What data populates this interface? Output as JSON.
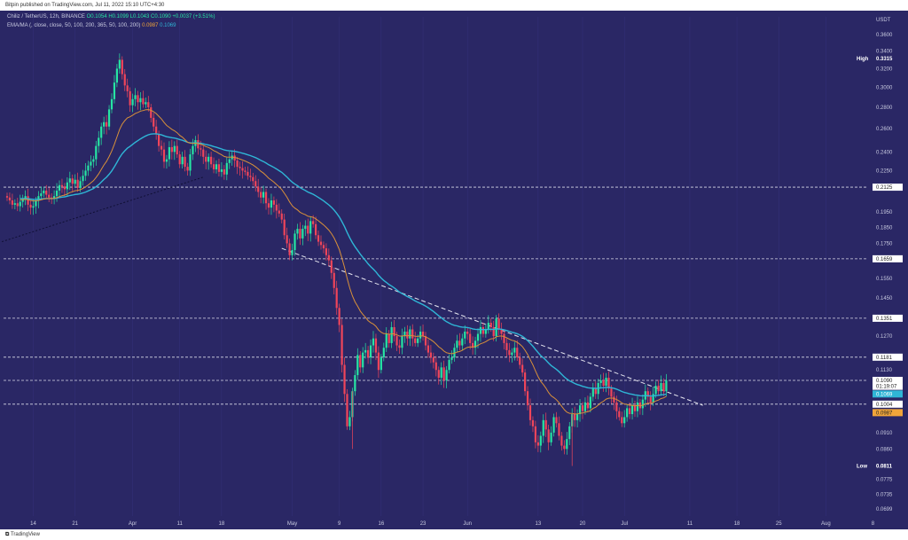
{
  "header": {
    "published_line": "Bitpin published on TradingView.com, Jul 11, 2022 15:10 UTC+4:30"
  },
  "legend": {
    "symbol_line": "Chiliz / TetherUS, 12h, BINANCE",
    "ohlc": {
      "open": "O0.1054",
      "high": "H0.1099",
      "low": "L0.1043",
      "close": "C0.1090",
      "change": "+0.0037 (+3.51%)"
    },
    "ma_line": "EMA/MA (, close, close, 50, 100, 200, 365, 50, 100, 200)",
    "ma_values": [
      "0.0987",
      "0.1069"
    ]
  },
  "colors": {
    "background": "#2a2765",
    "up_candle": "#26e5a3",
    "down_candle": "#f0455a",
    "ema_orange": "#d9913a",
    "ma_blue": "#2fb6d6",
    "level_line": "#d8d8e8",
    "grid": "#34317a"
  },
  "footer": {
    "brand": "TradingView"
  },
  "chart_data": {
    "type": "candlestick",
    "y_axis_unit": "USDT",
    "y_axis_ticks": [
      "0.3600",
      "0.3400",
      "0.3200",
      "0.3000",
      "0.2800",
      "0.2600",
      "0.2400",
      "0.2250",
      "0.2125",
      "0.1950",
      "0.1850",
      "0.1750",
      "0.1659",
      "0.1550",
      "0.1450",
      "0.1351",
      "0.1270",
      "0.1181",
      "0.1130",
      "0.1090",
      "0.1004",
      "0.0910",
      "0.0860",
      "0.0811",
      "0.0775",
      "0.0735",
      "0.0699"
    ],
    "x_axis_ticks": [
      "14",
      "21",
      "Apr",
      "11",
      "18",
      "May",
      "9",
      "16",
      "23",
      "Jun",
      "13",
      "20",
      "Jul",
      "11",
      "18",
      "25",
      "Aug",
      "8"
    ],
    "price_labels": [
      {
        "label": "High",
        "value": "0.3315"
      },
      {
        "label": "",
        "value": "0.2125"
      },
      {
        "label": "",
        "value": "0.1659"
      },
      {
        "label": "",
        "value": "0.1351"
      },
      {
        "label": "",
        "value": "0.1181"
      },
      {
        "label": "",
        "value": "0.1090"
      },
      {
        "label": "",
        "value": "01:19:07"
      },
      {
        "label": "",
        "value": "0.1069"
      },
      {
        "label": "",
        "value": "0.1004"
      },
      {
        "label": "",
        "value": "0.0987"
      },
      {
        "label": "Low",
        "value": "0.0811"
      }
    ],
    "horizontal_levels": [
      0.2125,
      0.1659,
      0.1351,
      0.1181,
      0.109,
      0.1004
    ],
    "trendlines": [
      {
        "style": "dashed",
        "from": {
          "t": -2,
          "p": 0.176
        },
        "to": {
          "t": 75,
          "p": 0.22
        }
      },
      {
        "style": "dashed",
        "from": {
          "t": 105,
          "p": 0.172
        },
        "to": {
          "t": 266,
          "p": 0.1
        }
      }
    ],
    "closes": [
      0.205,
      0.203,
      0.2,
      0.201,
      0.199,
      0.202,
      0.204,
      0.206,
      0.2,
      0.198,
      0.199,
      0.203,
      0.206,
      0.208,
      0.21,
      0.207,
      0.205,
      0.204,
      0.206,
      0.21,
      0.214,
      0.213,
      0.211,
      0.216,
      0.219,
      0.215,
      0.218,
      0.212,
      0.217,
      0.221,
      0.225,
      0.229,
      0.232,
      0.234,
      0.245,
      0.252,
      0.262,
      0.266,
      0.262,
      0.278,
      0.288,
      0.305,
      0.32,
      0.33,
      0.314,
      0.302,
      0.296,
      0.282,
      0.288,
      0.292,
      0.285,
      0.289,
      0.283,
      0.285,
      0.28,
      0.27,
      0.262,
      0.255,
      0.245,
      0.242,
      0.232,
      0.234,
      0.244,
      0.24,
      0.245,
      0.238,
      0.23,
      0.236,
      0.228,
      0.225,
      0.238,
      0.245,
      0.25,
      0.243,
      0.242,
      0.236,
      0.232,
      0.236,
      0.23,
      0.226,
      0.23,
      0.224,
      0.226,
      0.222,
      0.231,
      0.234,
      0.237,
      0.233,
      0.228,
      0.227,
      0.225,
      0.224,
      0.221,
      0.22,
      0.217,
      0.213,
      0.209,
      0.205,
      0.209,
      0.201,
      0.198,
      0.203,
      0.2,
      0.196,
      0.194,
      0.19,
      0.18,
      0.175,
      0.168,
      0.171,
      0.181,
      0.184,
      0.178,
      0.184,
      0.186,
      0.181,
      0.189,
      0.187,
      0.18,
      0.176,
      0.174,
      0.172,
      0.168,
      0.165,
      0.158,
      0.15,
      0.14,
      0.132,
      0.115,
      0.104,
      0.093,
      0.096,
      0.105,
      0.111,
      0.119,
      0.114,
      0.12,
      0.121,
      0.118,
      0.123,
      0.126,
      0.12,
      0.113,
      0.118,
      0.122,
      0.128,
      0.124,
      0.131,
      0.127,
      0.123,
      0.122,
      0.127,
      0.129,
      0.126,
      0.13,
      0.126,
      0.124,
      0.126,
      0.129,
      0.127,
      0.123,
      0.12,
      0.118,
      0.116,
      0.113,
      0.11,
      0.114,
      0.109,
      0.113,
      0.117,
      0.118,
      0.122,
      0.125,
      0.123,
      0.126,
      0.129,
      0.128,
      0.124,
      0.122,
      0.125,
      0.128,
      0.131,
      0.128,
      0.13,
      0.133,
      0.131,
      0.127,
      0.135,
      0.13,
      0.128,
      0.124,
      0.121,
      0.119,
      0.12,
      0.122,
      0.118,
      0.115,
      0.112,
      0.105,
      0.1,
      0.095,
      0.093,
      0.088,
      0.087,
      0.09,
      0.095,
      0.092,
      0.088,
      0.091,
      0.096,
      0.094,
      0.09,
      0.087,
      0.086,
      0.089,
      0.093,
      0.097,
      0.095,
      0.097,
      0.1,
      0.098,
      0.101,
      0.099,
      0.103,
      0.106,
      0.104,
      0.108,
      0.109,
      0.107,
      0.11,
      0.106,
      0.103,
      0.101,
      0.098,
      0.096,
      0.094,
      0.096,
      0.099,
      0.097,
      0.1,
      0.098,
      0.101,
      0.099,
      0.102,
      0.105,
      0.103,
      0.101,
      0.104,
      0.107,
      0.105,
      0.108,
      0.105,
      0.109
    ]
  }
}
